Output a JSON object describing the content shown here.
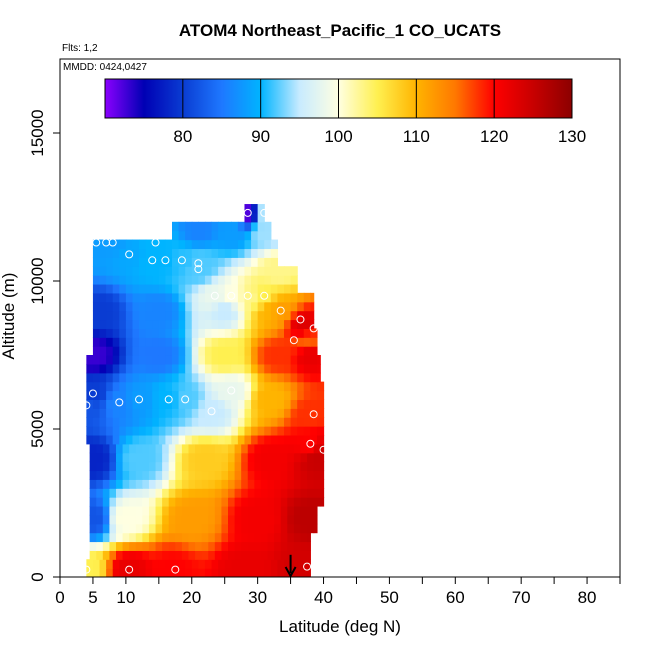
{
  "chart_data": {
    "type": "heatmap",
    "title": "ATOM4 Northeast_Pacific_1 CO_UCATS",
    "flights_label": "Flts: 1,2",
    "dates_label": "MMDD: 0424,0427",
    "xlabel": "Latitude (deg N)",
    "ylabel": "Altitude (m)",
    "xlim": [
      0,
      85
    ],
    "ylim": [
      0,
      17500
    ],
    "x_ticks": [
      0,
      5,
      10,
      20,
      30,
      40,
      50,
      60,
      70,
      80
    ],
    "y_ticks": [
      0,
      5000,
      10000,
      15000
    ],
    "grid": false,
    "colorbar": {
      "position": "top, inside plot",
      "range": [
        70,
        130
      ],
      "ticks": [
        80,
        90,
        100,
        110,
        120,
        130
      ],
      "colors": [
        "#8b00ff",
        "#0000b4",
        "#0a3cd2",
        "#1e78ff",
        "#00b4ff",
        "#c8ebff",
        "#ffffe1",
        "#fff050",
        "#ffb400",
        "#ff7800",
        "#ff0000",
        "#c80000",
        "#8c0000"
      ]
    },
    "coverage": [
      {
        "alt": 250,
        "lat_min": 4,
        "lat_max": 38
      },
      {
        "alt": 1000,
        "lat_min": 4.5,
        "lat_max": 38
      },
      {
        "alt": 2000,
        "lat_min": 4.5,
        "lat_max": 39
      },
      {
        "alt": 3000,
        "lat_min": 4.5,
        "lat_max": 40
      },
      {
        "alt": 4000,
        "lat_min": 4.5,
        "lat_max": 40
      },
      {
        "alt": 5000,
        "lat_min": 4,
        "lat_max": 40
      },
      {
        "alt": 6000,
        "lat_min": 4,
        "lat_max": 40
      },
      {
        "alt": 7000,
        "lat_min": 4,
        "lat_max": 39.5
      },
      {
        "alt": 8000,
        "lat_min": 5,
        "lat_max": 39
      },
      {
        "alt": 9000,
        "lat_min": 5,
        "lat_max": 38.5
      },
      {
        "alt": 10000,
        "lat_min": 5,
        "lat_max": 36
      },
      {
        "alt": 11000,
        "lat_min": 5,
        "lat_max": 33
      },
      {
        "alt": 11800,
        "lat_min": 17,
        "lat_max": 32
      },
      {
        "alt": 12300,
        "lat_min": 28,
        "lat_max": 31
      }
    ],
    "samples": [
      {
        "lat": 4,
        "alt": 250,
        "co": 105
      },
      {
        "lat": 10.5,
        "alt": 250,
        "co": 122
      },
      {
        "lat": 17,
        "alt": 250,
        "co": 120
      },
      {
        "lat": 28,
        "alt": 250,
        "co": 122
      },
      {
        "lat": 37,
        "alt": 350,
        "co": 124
      },
      {
        "lat": 5,
        "alt": 2000,
        "co": 82
      },
      {
        "lat": 10,
        "alt": 2000,
        "co": 100
      },
      {
        "lat": 20,
        "alt": 2000,
        "co": 112
      },
      {
        "lat": 30,
        "alt": 2000,
        "co": 121
      },
      {
        "lat": 38,
        "alt": 2000,
        "co": 126
      },
      {
        "lat": 5,
        "alt": 4000,
        "co": 78
      },
      {
        "lat": 12,
        "alt": 4000,
        "co": 92
      },
      {
        "lat": 22,
        "alt": 4000,
        "co": 108
      },
      {
        "lat": 32,
        "alt": 4000,
        "co": 121
      },
      {
        "lat": 39,
        "alt": 4000,
        "co": 125
      },
      {
        "lat": 4,
        "alt": 5800,
        "co": 82
      },
      {
        "lat": 5,
        "alt": 6200,
        "co": 80
      },
      {
        "lat": 9,
        "alt": 5900,
        "co": 86
      },
      {
        "lat": 12,
        "alt": 6000,
        "co": 88
      },
      {
        "lat": 16.5,
        "alt": 6000,
        "co": 90
      },
      {
        "lat": 19,
        "alt": 6000,
        "co": 92
      },
      {
        "lat": 23,
        "alt": 5600,
        "co": 95
      },
      {
        "lat": 26,
        "alt": 6300,
        "co": 98
      },
      {
        "lat": 32,
        "alt": 6000,
        "co": 110
      },
      {
        "lat": 38,
        "alt": 5500,
        "co": 118
      },
      {
        "lat": 38,
        "alt": 4500,
        "co": 120
      },
      {
        "lat": 40,
        "alt": 4300,
        "co": 124
      },
      {
        "lat": 5,
        "alt": 7500,
        "co": 73
      },
      {
        "lat": 15,
        "alt": 7500,
        "co": 85
      },
      {
        "lat": 25,
        "alt": 7500,
        "co": 105
      },
      {
        "lat": 33,
        "alt": 7500,
        "co": 118
      },
      {
        "lat": 38,
        "alt": 7500,
        "co": 122
      },
      {
        "lat": 6,
        "alt": 9000,
        "co": 80
      },
      {
        "lat": 15,
        "alt": 9000,
        "co": 86
      },
      {
        "lat": 25,
        "alt": 9000,
        "co": 95
      },
      {
        "lat": 32,
        "alt": 9000,
        "co": 110
      },
      {
        "lat": 37,
        "alt": 8500,
        "co": 123
      },
      {
        "lat": 37.5,
        "alt": 8000,
        "co": 116
      },
      {
        "lat": 23.5,
        "alt": 9500,
        "co": 98
      },
      {
        "lat": 26,
        "alt": 9500,
        "co": 100
      },
      {
        "lat": 29,
        "alt": 9500,
        "co": 103
      },
      {
        "lat": 30.5,
        "alt": 9500,
        "co": 105
      },
      {
        "lat": 33,
        "alt": 9000,
        "co": 112
      },
      {
        "lat": 5.5,
        "alt": 11300,
        "co": 88
      },
      {
        "lat": 7,
        "alt": 11300,
        "co": 88
      },
      {
        "lat": 8,
        "alt": 11300,
        "co": 88
      },
      {
        "lat": 10.5,
        "alt": 10900,
        "co": 89
      },
      {
        "lat": 14,
        "alt": 10700,
        "co": 90
      },
      {
        "lat": 14.5,
        "alt": 11300,
        "co": 90
      },
      {
        "lat": 16,
        "alt": 10700,
        "co": 90
      },
      {
        "lat": 18.5,
        "alt": 10700,
        "co": 91
      },
      {
        "lat": 21,
        "alt": 10600,
        "co": 92
      },
      {
        "lat": 21,
        "alt": 10400,
        "co": 92
      },
      {
        "lat": 33,
        "alt": 10400,
        "co": 103
      },
      {
        "lat": 21,
        "alt": 11700,
        "co": 86
      },
      {
        "lat": 26,
        "alt": 11700,
        "co": 88
      },
      {
        "lat": 31,
        "alt": 11700,
        "co": 94
      },
      {
        "lat": 28.5,
        "alt": 12300,
        "co": 72
      },
      {
        "lat": 31,
        "alt": 12300,
        "co": 95
      }
    ],
    "circles": [
      {
        "lat": 4,
        "alt": 250
      },
      {
        "lat": 10.5,
        "alt": 250
      },
      {
        "lat": 17.5,
        "alt": 250
      },
      {
        "lat": 37.5,
        "alt": 350
      },
      {
        "lat": 4,
        "alt": 5800
      },
      {
        "lat": 5,
        "alt": 6200
      },
      {
        "lat": 9,
        "alt": 5900
      },
      {
        "lat": 12,
        "alt": 6000
      },
      {
        "lat": 16.5,
        "alt": 6000
      },
      {
        "lat": 19,
        "alt": 6000
      },
      {
        "lat": 23,
        "alt": 5600
      },
      {
        "lat": 26,
        "alt": 6300
      },
      {
        "lat": 38.5,
        "alt": 5500
      },
      {
        "lat": 38,
        "alt": 4500
      },
      {
        "lat": 40,
        "alt": 4300
      },
      {
        "lat": 35.5,
        "alt": 8000
      },
      {
        "lat": 36.5,
        "alt": 8700
      },
      {
        "lat": 38.5,
        "alt": 8400
      },
      {
        "lat": 33.5,
        "alt": 9000
      },
      {
        "lat": 23.5,
        "alt": 9500
      },
      {
        "lat": 26,
        "alt": 9500
      },
      {
        "lat": 28.5,
        "alt": 9500
      },
      {
        "lat": 31,
        "alt": 9500
      },
      {
        "lat": 5.5,
        "alt": 11300
      },
      {
        "lat": 7,
        "alt": 11300
      },
      {
        "lat": 8,
        "alt": 11300
      },
      {
        "lat": 14.5,
        "alt": 11300
      },
      {
        "lat": 10.5,
        "alt": 10900
      },
      {
        "lat": 14,
        "alt": 10700
      },
      {
        "lat": 16,
        "alt": 10700
      },
      {
        "lat": 18.5,
        "alt": 10700
      },
      {
        "lat": 21,
        "alt": 10600
      },
      {
        "lat": 21,
        "alt": 10400
      },
      {
        "lat": 28.5,
        "alt": 12300
      },
      {
        "lat": 31,
        "alt": 12300
      }
    ],
    "arrow": {
      "lat": 35,
      "alt_top": 750,
      "alt_bottom": 0
    }
  }
}
